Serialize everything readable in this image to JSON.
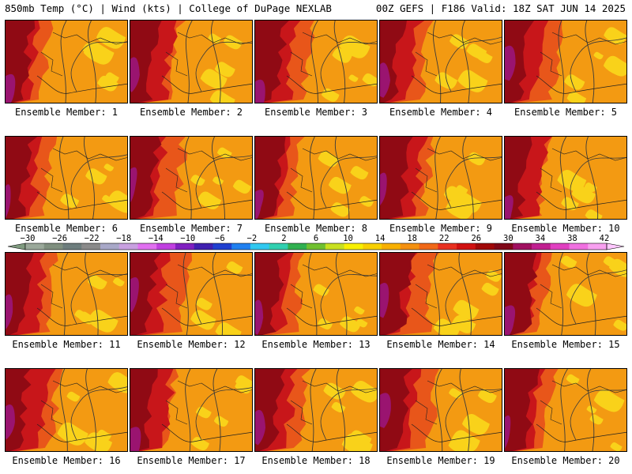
{
  "header": {
    "left": "850mb Temp (°C) | Wind (kts) | College of DuPage NEXLAB",
    "right": "00Z GEFS | F186 Valid: 18Z SAT JUN 14 2025"
  },
  "panels": [
    {
      "caption": "Ensemble Member: 1"
    },
    {
      "caption": "Ensemble Member: 2"
    },
    {
      "caption": "Ensemble Member: 3"
    },
    {
      "caption": "Ensemble Member: 4"
    },
    {
      "caption": "Ensemble Member: 5"
    },
    {
      "caption": "Ensemble Member: 6"
    },
    {
      "caption": "Ensemble Member: 7"
    },
    {
      "caption": "Ensemble Member: 8"
    },
    {
      "caption": "Ensemble Member: 9"
    },
    {
      "caption": "Ensemble Member: 10"
    },
    {
      "caption": "Ensemble Member: 11"
    },
    {
      "caption": "Ensemble Member: 12"
    },
    {
      "caption": "Ensemble Member: 13"
    },
    {
      "caption": "Ensemble Member: 14"
    },
    {
      "caption": "Ensemble Member: 15"
    },
    {
      "caption": "Ensemble Member: 16"
    },
    {
      "caption": "Ensemble Member: 17"
    },
    {
      "caption": "Ensemble Member: 18"
    },
    {
      "caption": "Ensemble Member: 19"
    },
    {
      "caption": "Ensemble Member: 20"
    }
  ],
  "colorbar": {
    "labels": [
      "−30",
      "−26",
      "−22",
      "−18",
      "−14",
      "−10",
      "−6",
      "−2",
      "2",
      "6",
      "10",
      "14",
      "18",
      "22",
      "26",
      "30",
      "34",
      "38",
      "42"
    ],
    "colors": [
      "#9aa89a",
      "#7f8f7f",
      "#6d7d7d",
      "#8a8a8a",
      "#a8a8c8",
      "#c8a0e0",
      "#e070f0",
      "#c040e0",
      "#8020c0",
      "#4020b0",
      "#2040d0",
      "#2080f0",
      "#30c8f0",
      "#30d0b0",
      "#30b050",
      "#70c030",
      "#c8e020",
      "#f8f000",
      "#f8d000",
      "#f8b000",
      "#f49010",
      "#f06818",
      "#e83020",
      "#d01010",
      "#a00808",
      "#800818",
      "#a01060",
      "#c02090",
      "#e040c0",
      "#f070e0",
      "#f8a0f0"
    ],
    "arrow_left": "#7f9a7f",
    "arrow_right": "#ffc8ff"
  },
  "map_colors": {
    "cool": "#f9d21a",
    "warm": "#f39a12",
    "hot": "#e8561a",
    "hotter": "#c8161a",
    "hottest": "#900a14",
    "extreme": "#9a1470",
    "contour": "#3a3a3a"
  }
}
